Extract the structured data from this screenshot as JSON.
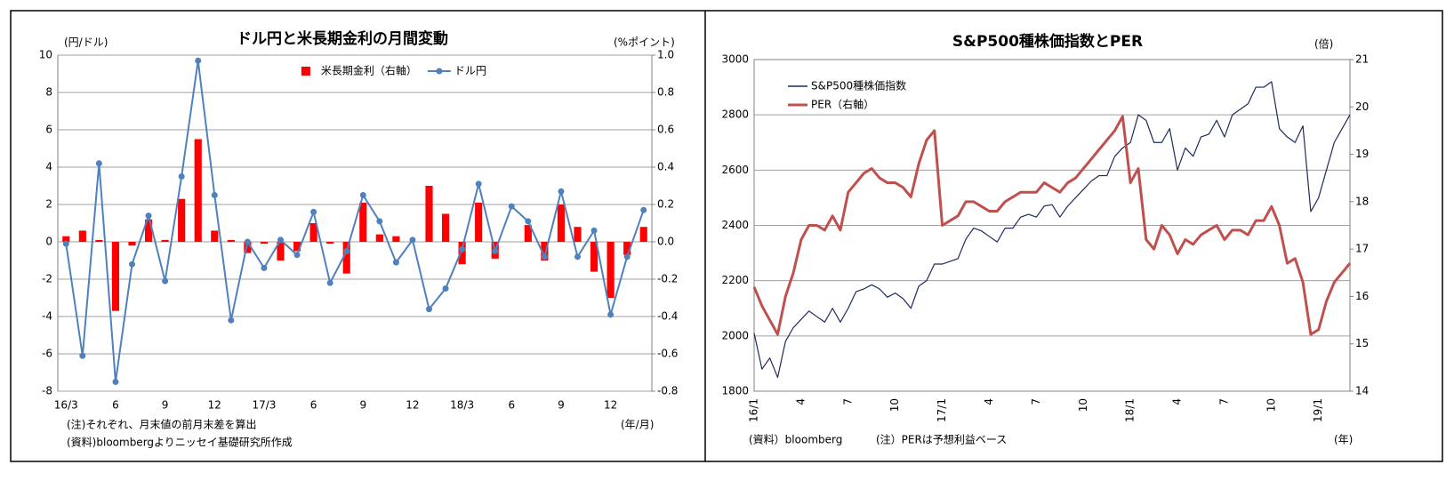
{
  "chart_data": [
    {
      "type": "combo",
      "title": "ドル円と米長期金利の月間変動",
      "y_label": "(円/ドル)",
      "y2_label": "(%ポイント)",
      "x_label": "(年/月)",
      "notes": [
        "(注)それぞれ、月末値の前月末差を算出",
        "(資料)bloombergよりニッセイ基礎研究所作成"
      ],
      "categories": [
        "16/3",
        null,
        null,
        "6",
        null,
        null,
        "9",
        null,
        null,
        "12",
        null,
        null,
        "17/3",
        null,
        null,
        "6",
        null,
        null,
        "9",
        null,
        null,
        "12",
        null,
        null,
        "18/3",
        null,
        null,
        "6",
        null,
        null,
        "9",
        null,
        null,
        "12",
        null,
        null
      ],
      "series": [
        {
          "name": "米長期金利（右軸）",
          "type": "bar",
          "axis": "y2",
          "color": "#ff0000",
          "values": [
            0.03,
            0.06,
            0.01,
            -0.37,
            -0.02,
            0.12,
            0.01,
            0.23,
            0.55,
            0.06,
            0.01,
            -0.06,
            -0.01,
            -0.1,
            -0.05,
            0.1,
            -0.01,
            -0.17,
            0.21,
            0.04,
            0.03,
            0,
            0.3,
            0.15,
            -0.12,
            0.21,
            -0.09,
            0,
            0.09,
            -0.1,
            0.2,
            0.08,
            -0.16,
            -0.3,
            -0.07,
            0.08
          ]
        },
        {
          "name": "ドル円",
          "type": "line",
          "color": "#4f81bd",
          "values": [
            -0.1,
            -6.1,
            4.2,
            -7.5,
            -1.2,
            1.4,
            -2.1,
            3.5,
            9.7,
            2.5,
            -4.2,
            0,
            -1.4,
            0.1,
            -0.7,
            1.6,
            -2.2,
            -0.5,
            2.5,
            1.1,
            -1.1,
            0.1,
            -3.6,
            -2.5,
            -0.4,
            3.1,
            -0.5,
            1.9,
            1.1,
            -0.8,
            2.7,
            -0.8,
            0.6,
            -3.9,
            -0.8,
            1.7
          ]
        }
      ],
      "ylim": [
        -8,
        10
      ],
      "yticks": [
        -8,
        -6,
        -4,
        -2,
        0,
        2,
        4,
        6,
        8,
        10
      ],
      "y2lim": [
        -0.8,
        1
      ],
      "y2ticks": [
        -0.8,
        -0.6,
        -0.4,
        -0.2,
        {
          "value": 0,
          "label": "0.0"
        },
        0.2,
        0.4,
        0.6,
        0.8,
        {
          "value": 1,
          "label": "1.0"
        }
      ],
      "grid": true,
      "legend": "top"
    },
    {
      "type": "line",
      "title": "S&P500種株価指数とPER",
      "y2_label": "(倍)",
      "x_label": "(年)",
      "notes": [
        "(資料）bloomberg",
        "(注）PERは予想利益ベース"
      ],
      "categories": [
        "16/1",
        null,
        null,
        null,
        null,
        null,
        "4",
        null,
        null,
        null,
        null,
        null,
        "7",
        null,
        null,
        null,
        null,
        null,
        "10",
        null,
        null,
        null,
        null,
        null,
        "17/1",
        null,
        null,
        null,
        null,
        null,
        "4",
        null,
        null,
        null,
        null,
        null,
        "7",
        null,
        null,
        null,
        null,
        null,
        "10",
        null,
        null,
        null,
        null,
        null,
        "18/1",
        null,
        null,
        null,
        null,
        null,
        "4",
        null,
        null,
        null,
        null,
        null,
        "7",
        null,
        null,
        null,
        null,
        null,
        "10",
        null,
        null,
        null,
        null,
        null,
        "19/1",
        null,
        null,
        null,
        null
      ],
      "series": [
        {
          "name": "S&P500種株価指数",
          "color": "#1f2a5c",
          "values": [
            2010,
            1880,
            1920,
            1850,
            1980,
            2030,
            2060,
            2090,
            2070,
            2050,
            2100,
            2050,
            2100,
            2160,
            2170,
            2185,
            2170,
            2140,
            2155,
            2135,
            2100,
            2180,
            2200,
            2260,
            2260,
            2270,
            2280,
            2350,
            2390,
            2380,
            2360,
            2340,
            2390,
            2390,
            2430,
            2440,
            2430,
            2470,
            2475,
            2430,
            2470,
            2500,
            2530,
            2560,
            2580,
            2580,
            2650,
            2680,
            2700,
            2800,
            2780,
            2700,
            2700,
            2750,
            2600,
            2680,
            2650,
            2720,
            2730,
            2780,
            2720,
            2800,
            2820,
            2840,
            2900,
            2900,
            2920,
            2750,
            2720,
            2700,
            2760,
            2450,
            2500,
            2600,
            2700,
            2750,
            2800
          ]
        },
        {
          "name": "PER（右軸）",
          "axis": "y2",
          "color": "#c0504d",
          "values": [
            16.2,
            15.8,
            15.5,
            15.2,
            16,
            16.5,
            17.2,
            17.5,
            17.5,
            17.4,
            17.7,
            17.4,
            18.2,
            18.4,
            18.6,
            18.7,
            18.5,
            18.4,
            18.4,
            18.3,
            18.1,
            18.8,
            19.3,
            19.5,
            17.5,
            17.6,
            17.7,
            18,
            18,
            17.9,
            17.8,
            17.8,
            18,
            18.1,
            18.2,
            18.2,
            18.2,
            18.4,
            18.3,
            18.2,
            18.4,
            18.5,
            18.7,
            18.9,
            19.1,
            19.3,
            19.5,
            19.8,
            18.4,
            18.7,
            17.2,
            17,
            17.5,
            17.3,
            16.9,
            17.2,
            17.1,
            17.3,
            17.4,
            17.5,
            17.2,
            17.4,
            17.4,
            17.3,
            17.6,
            17.6,
            17.9,
            17.5,
            16.7,
            16.8,
            16.3,
            15.2,
            15.3,
            15.9,
            16.3,
            16.5,
            16.7
          ]
        }
      ],
      "ylim": [
        1800,
        3000
      ],
      "yticks": [
        1800,
        2000,
        2200,
        2400,
        2600,
        2800,
        3000
      ],
      "y2lim": [
        14,
        21
      ],
      "y2ticks": [
        14,
        15,
        16,
        17,
        18,
        19,
        20,
        21
      ],
      "grid": true,
      "legend": "top-left"
    }
  ]
}
